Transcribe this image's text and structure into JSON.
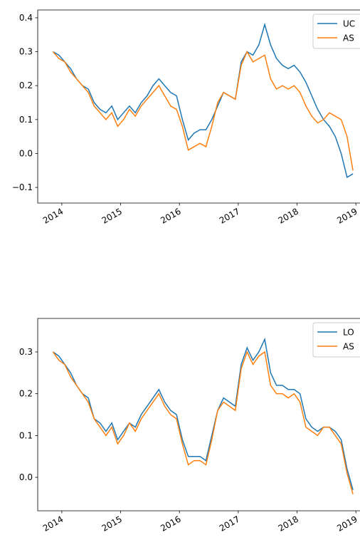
{
  "chart_data": [
    {
      "type": "line",
      "x": [
        2013.85,
        2013.95,
        2014.05,
        2014.15,
        2014.25,
        2014.35,
        2014.45,
        2014.55,
        2014.65,
        2014.75,
        2014.85,
        2014.95,
        2015.05,
        2015.15,
        2015.25,
        2015.35,
        2015.45,
        2015.55,
        2015.65,
        2015.75,
        2015.85,
        2015.95,
        2016.05,
        2016.15,
        2016.25,
        2016.35,
        2016.45,
        2016.55,
        2016.65,
        2016.75,
        2016.85,
        2016.95,
        2017.05,
        2017.15,
        2017.25,
        2017.35,
        2017.45,
        2017.55,
        2017.65,
        2017.75,
        2017.85,
        2017.95,
        2018.05,
        2018.15,
        2018.25,
        2018.35,
        2018.45,
        2018.55,
        2018.65,
        2018.75,
        2018.85,
        2018.95
      ],
      "series": [
        {
          "name": "UC",
          "color": "#1f77b4",
          "values": [
            0.3,
            0.29,
            0.27,
            0.25,
            0.22,
            0.2,
            0.19,
            0.15,
            0.13,
            0.12,
            0.14,
            0.1,
            0.12,
            0.14,
            0.12,
            0.15,
            0.17,
            0.2,
            0.22,
            0.2,
            0.18,
            0.17,
            0.1,
            0.04,
            0.06,
            0.07,
            0.07,
            0.1,
            0.14,
            0.18,
            0.17,
            0.16,
            0.27,
            0.3,
            0.29,
            0.32,
            0.38,
            0.32,
            0.28,
            0.26,
            0.25,
            0.26,
            0.24,
            0.21,
            0.17,
            0.13,
            0.1,
            0.08,
            0.05,
            0.0,
            -0.07,
            -0.06
          ]
        },
        {
          "name": "AS",
          "color": "#ff7f0e",
          "values": [
            0.3,
            0.28,
            0.27,
            0.24,
            0.22,
            0.2,
            0.18,
            0.14,
            0.12,
            0.1,
            0.12,
            0.08,
            0.1,
            0.13,
            0.11,
            0.14,
            0.16,
            0.18,
            0.2,
            0.17,
            0.14,
            0.13,
            0.08,
            0.01,
            0.02,
            0.03,
            0.02,
            0.08,
            0.15,
            0.18,
            0.17,
            0.16,
            0.26,
            0.3,
            0.27,
            0.28,
            0.29,
            0.22,
            0.19,
            0.2,
            0.19,
            0.2,
            0.18,
            0.14,
            0.11,
            0.09,
            0.1,
            0.12,
            0.11,
            0.1,
            0.05,
            -0.05
          ]
        }
      ],
      "xlim": [
        2013.59,
        2019.07
      ],
      "xticks": [
        2014,
        2015,
        2016,
        2017,
        2018,
        2019
      ],
      "ylim": [
        -0.146,
        0.423
      ],
      "yticks": [
        {
          "value": -0.1,
          "label": "−0.1"
        },
        {
          "value": 0,
          "label": "0.0"
        },
        0.1,
        0.2,
        0.3,
        0.4
      ],
      "legend": "upper right"
    },
    {
      "type": "line",
      "x": [
        2013.85,
        2013.95,
        2014.05,
        2014.15,
        2014.25,
        2014.35,
        2014.45,
        2014.55,
        2014.65,
        2014.75,
        2014.85,
        2014.95,
        2015.05,
        2015.15,
        2015.25,
        2015.35,
        2015.45,
        2015.55,
        2015.65,
        2015.75,
        2015.85,
        2015.95,
        2016.05,
        2016.15,
        2016.25,
        2016.35,
        2016.45,
        2016.55,
        2016.65,
        2016.75,
        2016.85,
        2016.95,
        2017.05,
        2017.15,
        2017.25,
        2017.35,
        2017.45,
        2017.55,
        2017.65,
        2017.75,
        2017.85,
        2017.95,
        2018.05,
        2018.15,
        2018.25,
        2018.35,
        2018.45,
        2018.55,
        2018.65,
        2018.75,
        2018.85,
        2018.95
      ],
      "series": [
        {
          "name": "LO",
          "color": "#1f77b4",
          "values": [
            0.3,
            0.29,
            0.27,
            0.25,
            0.22,
            0.2,
            0.19,
            0.14,
            0.13,
            0.11,
            0.13,
            0.09,
            0.11,
            0.13,
            0.12,
            0.15,
            0.17,
            0.19,
            0.21,
            0.18,
            0.16,
            0.15,
            0.09,
            0.05,
            0.05,
            0.05,
            0.04,
            0.1,
            0.16,
            0.19,
            0.18,
            0.17,
            0.27,
            0.31,
            0.28,
            0.3,
            0.33,
            0.25,
            0.22,
            0.22,
            0.21,
            0.21,
            0.2,
            0.14,
            0.12,
            0.11,
            0.12,
            0.12,
            0.11,
            0.09,
            0.02,
            -0.03
          ]
        },
        {
          "name": "AS",
          "color": "#ff7f0e",
          "values": [
            0.3,
            0.28,
            0.27,
            0.24,
            0.22,
            0.2,
            0.18,
            0.14,
            0.12,
            0.1,
            0.12,
            0.08,
            0.1,
            0.13,
            0.11,
            0.14,
            0.16,
            0.18,
            0.2,
            0.17,
            0.15,
            0.14,
            0.08,
            0.03,
            0.04,
            0.04,
            0.03,
            0.09,
            0.16,
            0.18,
            0.17,
            0.16,
            0.26,
            0.3,
            0.27,
            0.29,
            0.3,
            0.22,
            0.2,
            0.2,
            0.19,
            0.2,
            0.18,
            0.12,
            0.11,
            0.1,
            0.12,
            0.12,
            0.1,
            0.08,
            0.01,
            -0.04
          ]
        }
      ],
      "xlim": [
        2013.59,
        2019.07
      ],
      "xticks": [
        2014,
        2015,
        2016,
        2017,
        2018,
        2019
      ],
      "ylim": [
        -0.08,
        0.38
      ],
      "yticks": [
        {
          "value": 0,
          "label": "0.0"
        },
        0.1,
        0.2,
        0.3
      ],
      "legend": "upper right"
    }
  ]
}
